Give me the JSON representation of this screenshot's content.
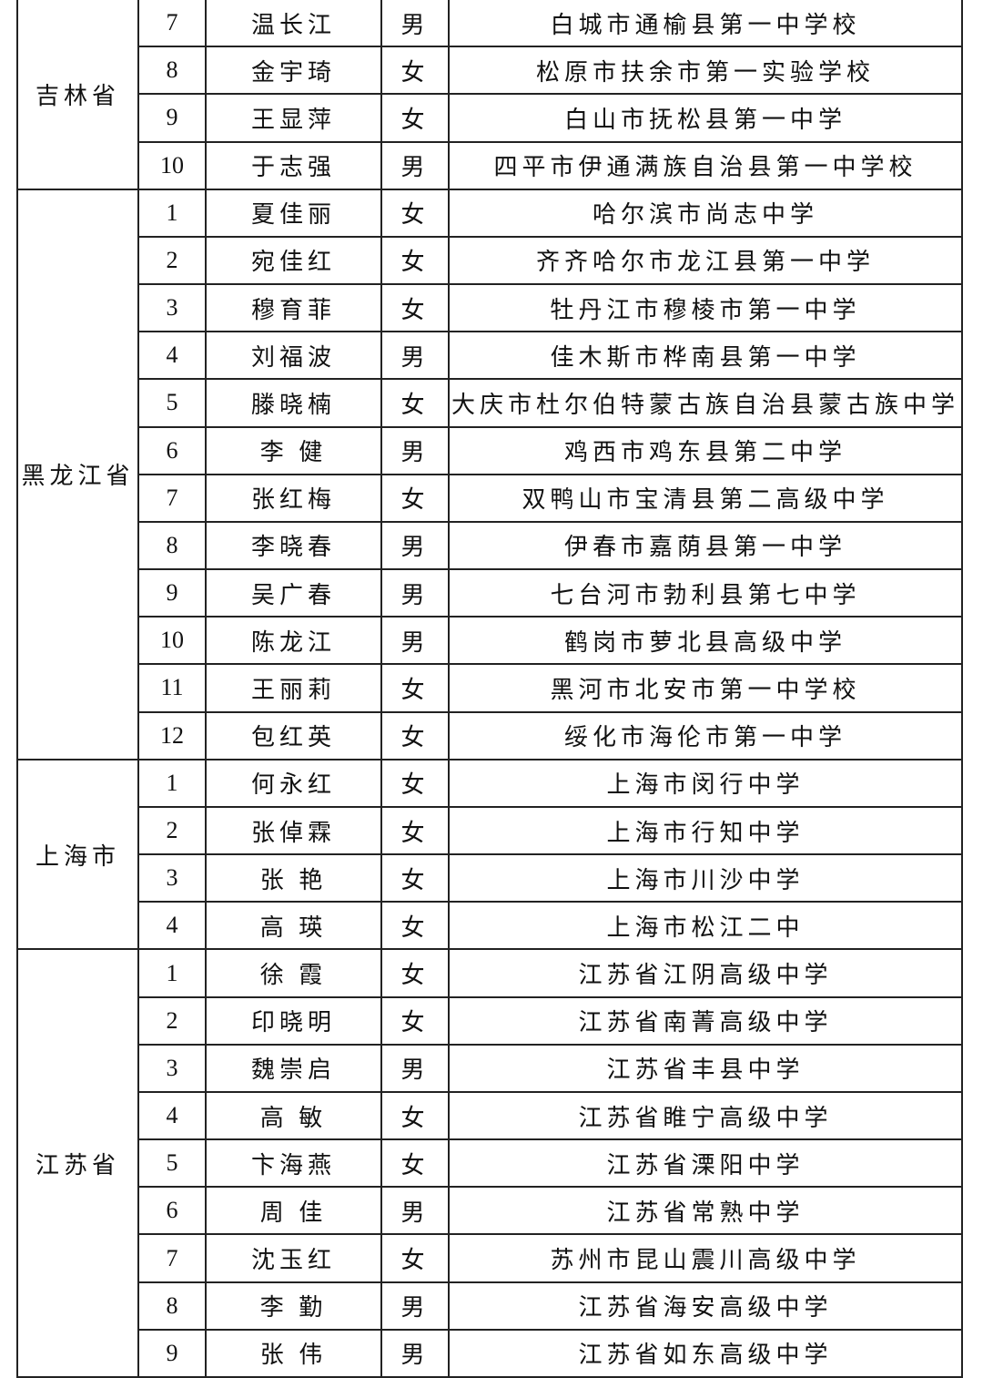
{
  "table": {
    "groups": [
      {
        "province": "吉林省",
        "rows": [
          [
            7,
            "温长江",
            "男",
            "白城市通榆县第一中学校"
          ],
          [
            8,
            "金宇琦",
            "女",
            "松原市扶余市第一实验学校"
          ],
          [
            9,
            "王显萍",
            "女",
            "白山市抚松县第一中学"
          ],
          [
            10,
            "于志强",
            "男",
            "四平市伊通满族自治县第一中学校"
          ]
        ]
      },
      {
        "province": "黑龙江省",
        "rows": [
          [
            1,
            "夏佳丽",
            "女",
            "哈尔滨市尚志中学"
          ],
          [
            2,
            "宛佳红",
            "女",
            "齐齐哈尔市龙江县第一中学"
          ],
          [
            3,
            "穆育菲",
            "女",
            "牡丹江市穆棱市第一中学"
          ],
          [
            4,
            "刘福波",
            "男",
            "佳木斯市桦南县第一中学"
          ],
          [
            5,
            "滕晓楠",
            "女",
            "大庆市杜尔伯特蒙古族自治县蒙古族中学"
          ],
          [
            6,
            "李 健",
            "男",
            "鸡西市鸡东县第二中学"
          ],
          [
            7,
            "张红梅",
            "女",
            "双鸭山市宝清县第二高级中学"
          ],
          [
            8,
            "李晓春",
            "男",
            "伊春市嘉荫县第一中学"
          ],
          [
            9,
            "吴广春",
            "男",
            "七台河市勃利县第七中学"
          ],
          [
            10,
            "陈龙江",
            "男",
            "鹤岗市萝北县高级中学"
          ],
          [
            11,
            "王丽莉",
            "女",
            "黑河市北安市第一中学校"
          ],
          [
            12,
            "包红英",
            "女",
            "绥化市海伦市第一中学"
          ]
        ]
      },
      {
        "province": "上海市",
        "rows": [
          [
            1,
            "何永红",
            "女",
            "上海市闵行中学"
          ],
          [
            2,
            "张倬霖",
            "女",
            "上海市行知中学"
          ],
          [
            3,
            "张 艳",
            "女",
            "上海市川沙中学"
          ],
          [
            4,
            "高 瑛",
            "女",
            "上海市松江二中"
          ]
        ]
      },
      {
        "province": "江苏省",
        "rows": [
          [
            1,
            "徐 霞",
            "女",
            "江苏省江阴高级中学"
          ],
          [
            2,
            "印晓明",
            "女",
            "江苏省南菁高级中学"
          ],
          [
            3,
            "魏崇启",
            "男",
            "江苏省丰县中学"
          ],
          [
            4,
            "高 敏",
            "女",
            "江苏省睢宁高级中学"
          ],
          [
            5,
            "卞海燕",
            "女",
            "江苏省溧阳中学"
          ],
          [
            6,
            "周 佳",
            "男",
            "江苏省常熟中学"
          ],
          [
            7,
            "沈玉红",
            "女",
            "苏州市昆山震川高级中学"
          ],
          [
            8,
            "李 勤",
            "男",
            "江苏省海安高级中学"
          ],
          [
            9,
            "张 伟",
            "男",
            "江苏省如东高级中学"
          ]
        ]
      }
    ]
  }
}
